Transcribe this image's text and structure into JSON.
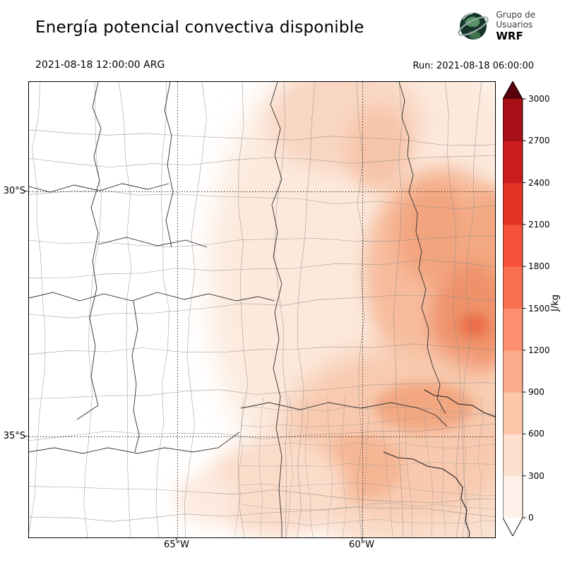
{
  "header": {
    "title": "Energía potencial convectiva disponible",
    "valid_time": "2021-08-18 12:00:00 ARG",
    "run_label": "Run: 2021-08-18 06:00:00",
    "logo": {
      "line1": "Grupo de",
      "line2": "Usuarios",
      "line3": "WRF"
    }
  },
  "map": {
    "lat_ticks": [
      "30°S",
      "35°S"
    ],
    "lon_ticks": [
      "65°W",
      "60°W"
    ]
  },
  "colorbar": {
    "unit": "J/kg",
    "ticks": [
      "0",
      "300",
      "600",
      "900",
      "1200",
      "1500",
      "1800",
      "2100",
      "2400",
      "2700",
      "3000"
    ],
    "segment_colors": [
      "#fff2ea",
      "#fde0cd",
      "#fcc7ab",
      "#fcab8c",
      "#fc8f6d",
      "#fb7050",
      "#f5543a",
      "#e33428",
      "#cb1d1e",
      "#a60f15",
      "#7f040f"
    ],
    "under_color": "#ffffff",
    "over_color": "#5a000c"
  },
  "chart_data": {
    "type": "heatmap",
    "title": "Energía potencial convectiva disponible",
    "variable": "CAPE (convective available potential energy)",
    "valid_time": "2021-08-18 12:00:00 ARG",
    "run_time": "2021-08-18 06:00:00",
    "units": "J/kg",
    "levels": [
      0,
      300,
      600,
      900,
      1200,
      1500,
      1800,
      2100,
      2400,
      2700,
      3000
    ],
    "palette": "Reds (white to dark red), arrow extensions under/over",
    "x_ticks": [
      "65°W",
      "60°W"
    ],
    "y_ticks": [
      "30°S",
      "35°S"
    ],
    "grid": "dotted lat/lon lines",
    "legend_position": "right vertical colorbar",
    "field_summary": [
      {
        "region": "western provinces (west of ~64°W)",
        "cape_jkg": "0"
      },
      {
        "region": "center-north band near 64–63°W",
        "cape_jkg": "0-300"
      },
      {
        "region": "northeast / upper right of domain",
        "cape_jkg": "300-900"
      },
      {
        "region": "east-central (around 59-58°W, 31-33°S)",
        "cape_jkg": "900-1200"
      },
      {
        "region": "local maximum near 58°W 33°S",
        "cape_jkg": "1200-1500"
      },
      {
        "region": "Buenos Aires province (lower right)",
        "cape_jkg": "300-900"
      },
      {
        "region": "south-center near 63°W 35-36°S",
        "cape_jkg": "0-300"
      }
    ]
  }
}
